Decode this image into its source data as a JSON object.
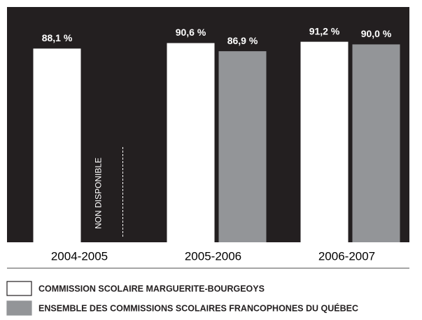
{
  "chart_data": {
    "type": "bar",
    "categories": [
      "2004-2005",
      "2005-2006",
      "2006-2007"
    ],
    "series": [
      {
        "name": "COMMISSION SCOLAIRE MARGUERITE-BOURGEOYS",
        "color": "#ffffff",
        "values": [
          88.1,
          90.6,
          91.2
        ],
        "value_labels": [
          "88,1 %",
          "90,6 %",
          "91,2 %"
        ]
      },
      {
        "name": "ENSEMBLE DES COMMISSIONS SCOLAIRES FRANCOPHONES DU QUÉBEC",
        "color": "#939598",
        "values": [
          null,
          86.9,
          90.0
        ],
        "value_labels": [
          null,
          "86,9 %",
          "90,0 %"
        ]
      }
    ],
    "annotation": "NON DISPONIBLE",
    "ylim": [
      0,
      100
    ]
  }
}
